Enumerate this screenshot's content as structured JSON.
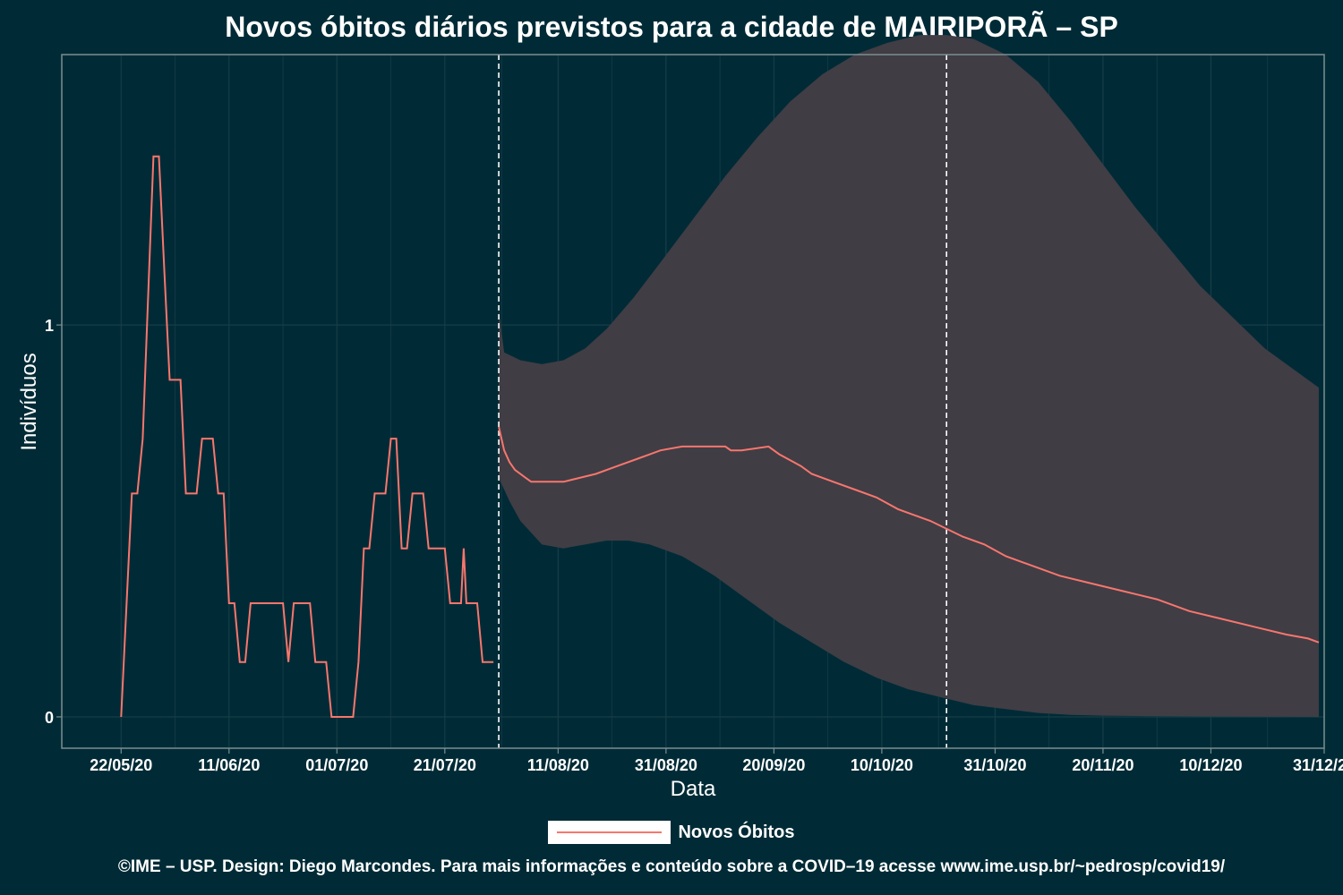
{
  "chart_data": {
    "type": "line",
    "title": "Novos óbitos diários previstos para a cidade de MAIRIPORÃ – SP",
    "xlabel": "Data",
    "ylabel": "Indivíduos",
    "x_tick_labels": [
      "22/05/20",
      "11/06/20",
      "01/07/20",
      "21/07/20",
      "11/08/20",
      "31/08/20",
      "20/09/20",
      "10/10/20",
      "31/10/20",
      "20/11/20",
      "10/12/20",
      "31/12/20"
    ],
    "y_tick_labels": [
      "0",
      "1"
    ],
    "ylim": [
      -0.08,
      1.69
    ],
    "xlim_days": [
      -11,
      223
    ],
    "x_tick_day": [
      0,
      20,
      40,
      60,
      81,
      101,
      121,
      141,
      162,
      182,
      202,
      223
    ],
    "grid": true,
    "legend_position": "bottom",
    "reference_lines_day": [
      70,
      153
    ],
    "series": [
      {
        "name": "Novos Óbitos",
        "color": "#f8766d",
        "observed": [
          [
            0,
            0
          ],
          [
            2,
            0.57
          ],
          [
            3,
            0.57
          ],
          [
            4,
            0.71
          ],
          [
            6,
            1.43
          ],
          [
            7,
            1.43
          ],
          [
            8,
            1.14
          ],
          [
            9,
            0.86
          ],
          [
            11,
            0.86
          ],
          [
            12,
            0.57
          ],
          [
            14,
            0.57
          ],
          [
            15,
            0.71
          ],
          [
            17,
            0.71
          ],
          [
            18,
            0.57
          ],
          [
            19,
            0.57
          ],
          [
            20,
            0.29
          ],
          [
            21,
            0.29
          ],
          [
            22,
            0.14
          ],
          [
            23,
            0.14
          ],
          [
            24,
            0.29
          ],
          [
            30,
            0.29
          ],
          [
            31,
            0.14
          ],
          [
            32,
            0.29
          ],
          [
            35,
            0.29
          ],
          [
            36,
            0.14
          ],
          [
            38,
            0.14
          ],
          [
            39,
            0
          ],
          [
            43,
            0
          ],
          [
            44,
            0.14
          ],
          [
            45,
            0.43
          ],
          [
            46,
            0.43
          ],
          [
            47,
            0.57
          ],
          [
            49,
            0.57
          ],
          [
            50,
            0.71
          ],
          [
            51,
            0.71
          ],
          [
            52,
            0.43
          ],
          [
            53,
            0.43
          ],
          [
            54,
            0.57
          ],
          [
            56,
            0.57
          ],
          [
            57,
            0.43
          ],
          [
            60,
            0.43
          ],
          [
            61,
            0.29
          ],
          [
            63,
            0.29
          ],
          [
            63.5,
            0.43
          ],
          [
            64,
            0.29
          ],
          [
            66,
            0.29
          ],
          [
            67,
            0.14
          ],
          [
            69,
            0.14
          ]
        ],
        "forecast": [
          [
            70,
            0.74
          ],
          [
            71,
            0.68
          ],
          [
            72,
            0.65
          ],
          [
            73,
            0.63
          ],
          [
            75,
            0.61
          ],
          [
            76,
            0.6
          ],
          [
            78,
            0.6
          ],
          [
            82,
            0.6
          ],
          [
            85,
            0.61
          ],
          [
            88,
            0.62
          ],
          [
            92,
            0.64
          ],
          [
            96,
            0.66
          ],
          [
            100,
            0.68
          ],
          [
            104,
            0.69
          ],
          [
            108,
            0.69
          ],
          [
            112,
            0.69
          ],
          [
            113,
            0.68
          ],
          [
            115,
            0.68
          ],
          [
            120,
            0.69
          ],
          [
            122,
            0.67
          ],
          [
            126,
            0.64
          ],
          [
            128,
            0.62
          ],
          [
            132,
            0.6
          ],
          [
            136,
            0.58
          ],
          [
            140,
            0.56
          ],
          [
            144,
            0.53
          ],
          [
            146,
            0.52
          ],
          [
            150,
            0.5
          ],
          [
            156,
            0.46
          ],
          [
            160,
            0.44
          ],
          [
            164,
            0.41
          ],
          [
            168,
            0.39
          ],
          [
            174,
            0.36
          ],
          [
            180,
            0.34
          ],
          [
            186,
            0.32
          ],
          [
            192,
            0.3
          ],
          [
            198,
            0.27
          ],
          [
            204,
            0.25
          ],
          [
            210,
            0.23
          ],
          [
            216,
            0.21
          ],
          [
            220,
            0.2
          ],
          [
            222,
            0.19
          ]
        ]
      }
    ],
    "confidence_band": {
      "upper": [
        [
          70,
          1.04
        ],
        [
          71,
          0.93
        ],
        [
          74,
          0.91
        ],
        [
          78,
          0.9
        ],
        [
          82,
          0.91
        ],
        [
          86,
          0.94
        ],
        [
          90,
          0.99
        ],
        [
          95,
          1.07
        ],
        [
          100,
          1.16
        ],
        [
          106,
          1.27
        ],
        [
          112,
          1.38
        ],
        [
          118,
          1.48
        ],
        [
          124,
          1.57
        ],
        [
          130,
          1.64
        ],
        [
          136,
          1.69
        ],
        [
          142,
          1.72
        ],
        [
          148,
          1.74
        ],
        [
          153,
          1.74
        ],
        [
          158,
          1.73
        ],
        [
          164,
          1.69
        ],
        [
          170,
          1.62
        ],
        [
          176,
          1.52
        ],
        [
          182,
          1.41
        ],
        [
          188,
          1.3
        ],
        [
          194,
          1.2
        ],
        [
          200,
          1.1
        ],
        [
          206,
          1.02
        ],
        [
          212,
          0.94
        ],
        [
          218,
          0.88
        ],
        [
          222,
          0.84
        ]
      ],
      "lower": [
        [
          70,
          0.61
        ],
        [
          72,
          0.55
        ],
        [
          74,
          0.5
        ],
        [
          76,
          0.47
        ],
        [
          78,
          0.44
        ],
        [
          82,
          0.43
        ],
        [
          86,
          0.44
        ],
        [
          90,
          0.45
        ],
        [
          94,
          0.45
        ],
        [
          98,
          0.44
        ],
        [
          104,
          0.41
        ],
        [
          110,
          0.36
        ],
        [
          116,
          0.3
        ],
        [
          122,
          0.24
        ],
        [
          128,
          0.19
        ],
        [
          134,
          0.14
        ],
        [
          140,
          0.1
        ],
        [
          146,
          0.07
        ],
        [
          152,
          0.05
        ],
        [
          158,
          0.03
        ],
        [
          164,
          0.02
        ],
        [
          170,
          0.01
        ],
        [
          176,
          0.005
        ],
        [
          182,
          0.003
        ],
        [
          190,
          0.002
        ],
        [
          200,
          0.001
        ],
        [
          222,
          0.0
        ]
      ]
    }
  },
  "legend": {
    "label": "Novos Óbitos"
  },
  "caption": "©IME – USP. Design: Diego Marcondes. Para mais informações e conteúdo sobre a COVID–19 acesse www.ime.usp.br/~pedrosp/covid19/",
  "colors": {
    "background": "#002b36",
    "band": "#403d45",
    "line": "#f8766d",
    "grid": "#153d48",
    "border": "#7a8e92"
  }
}
